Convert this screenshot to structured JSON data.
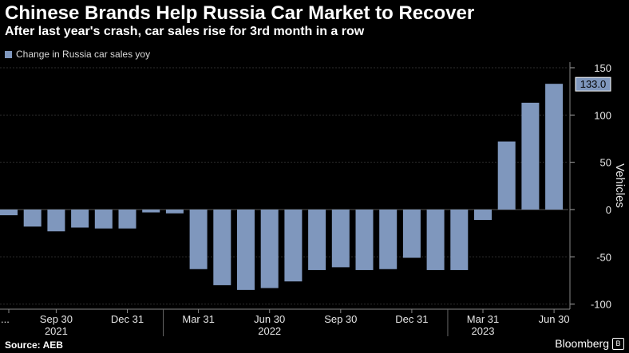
{
  "header": {
    "title": "Chinese Brands Help Russia Car Market to Recover",
    "subtitle": "After last year's crash, car sales rise for 3rd month in a row"
  },
  "footer": {
    "source": "Source: AEB",
    "brand": "Bloomberg"
  },
  "colors": {
    "bar": "#7f97bd",
    "background": "#000000",
    "text": "#ffffff",
    "gridline": "#333333"
  },
  "chart_data": {
    "type": "bar",
    "series": [
      {
        "name": "Change in Russia car sales yoy",
        "values": [
          -6,
          -18,
          -23,
          -19,
          -20,
          -20,
          -3,
          -4,
          -63,
          -80,
          -85,
          -83,
          -76,
          -64,
          -61,
          -64,
          -63,
          -51,
          -64,
          -64,
          -11,
          72,
          113,
          133
        ]
      }
    ],
    "y_ticks": [
      150,
      100,
      50,
      0,
      -50,
      -100
    ],
    "ylim": [
      -105,
      155
    ],
    "ylabel": "Vehicles",
    "value_label": "133.0",
    "x_ticks": [
      {
        "label": "...",
        "index": 0
      },
      {
        "label": "Sep 30",
        "index": 2
      },
      {
        "label": "Dec 31",
        "index": 5
      },
      {
        "label": "Mar 31",
        "index": 8
      },
      {
        "label": "Jun 30",
        "index": 11
      },
      {
        "label": "Sep 30",
        "index": 14
      },
      {
        "label": "Dec 31",
        "index": 17
      },
      {
        "label": "Mar 31",
        "index": 20
      },
      {
        "label": "Jun 30",
        "index": 23
      }
    ],
    "year_labels": [
      {
        "label": "2021",
        "index": 2
      },
      {
        "label": "2022",
        "index": 11
      },
      {
        "label": "2023",
        "index": 20
      }
    ],
    "grid": true,
    "legend": "top-left"
  }
}
